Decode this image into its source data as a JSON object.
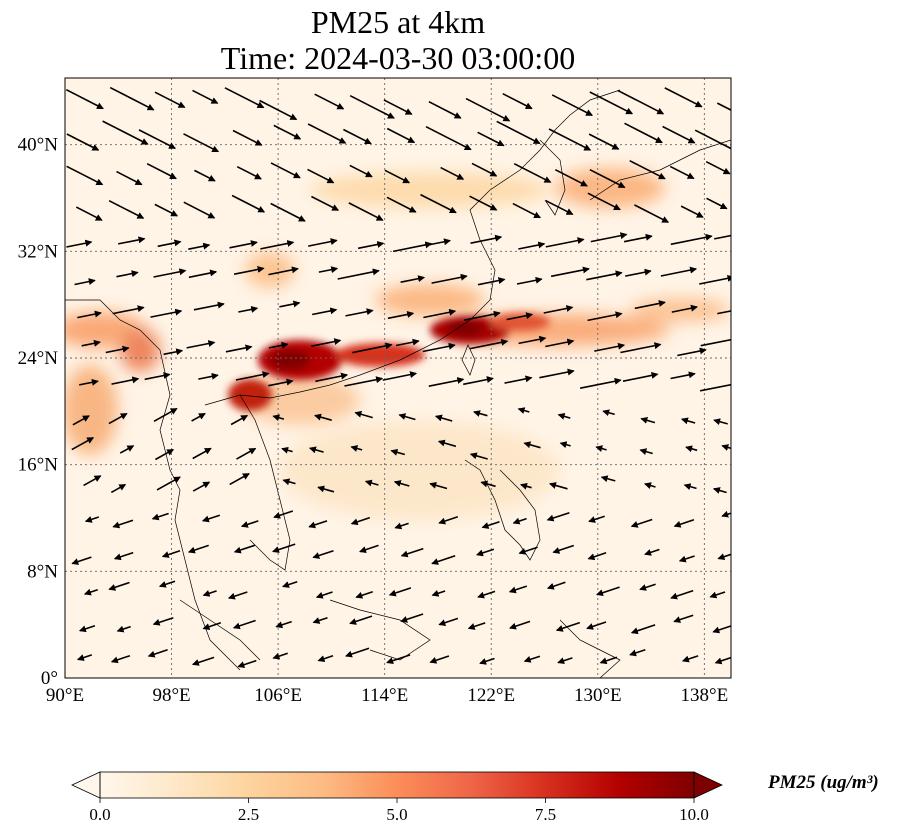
{
  "title": {
    "line1": "PM25 at 4km",
    "line2": "Time: 2024-03-30 03:00:00"
  },
  "map": {
    "lon_range": [
      90,
      140
    ],
    "lat_range": [
      0,
      45
    ],
    "x_ticks": [
      "90°E",
      "98°E",
      "106°E",
      "114°E",
      "122°E",
      "130°E",
      "138°E"
    ],
    "y_ticks": [
      "0°",
      "8°N",
      "16°N",
      "24°N",
      "32°N",
      "40°N"
    ],
    "gridlines": true,
    "overlay": "wind vectors",
    "colormap": "OrRd"
  },
  "colorbar": {
    "label": "PM25 (ug/m³)",
    "ticks": [
      "0.0",
      "2.5",
      "5.0",
      "7.5",
      "10.0"
    ],
    "min": 0,
    "max": 10,
    "extend": "both",
    "colors": [
      "#fff7ec",
      "#fee8c8",
      "#fdd49e",
      "#fdbb84",
      "#fc8d59",
      "#ef6548",
      "#d7301f",
      "#b30000",
      "#7f0000"
    ]
  }
}
